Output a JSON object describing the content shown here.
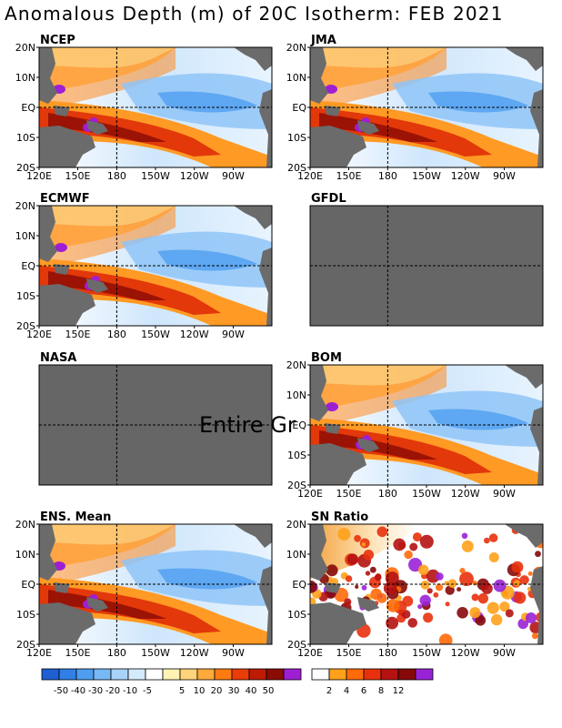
{
  "title": "Anomalous Depth (m) of 20C Isotherm: FEB 2021",
  "colors": {
    "land": "#6b6b6b",
    "missing": "#666666",
    "grid_line": "#000000",
    "anomaly_scale": [
      "#1e5fd4",
      "#2f7fe6",
      "#4f9df0",
      "#78b8f5",
      "#a9d2fa",
      "#d4ebfd",
      "#ffffff",
      "#fff2b3",
      "#ffd37a",
      "#ffaa3b",
      "#ff7b12",
      "#ea3c06",
      "#bd1b04",
      "#8a0c03",
      "#9e1fd3"
    ],
    "sn_scale": [
      "#ffffff",
      "#ffa11a",
      "#ff6a0a",
      "#e8310c",
      "#b51212",
      "#860909",
      "#9a22d6"
    ]
  },
  "chart_data": [
    {
      "type": "heatmap",
      "name": "NCEP",
      "status": "data",
      "xlim": [
        "120E",
        "70W"
      ],
      "ylim": [
        "20S",
        "20N"
      ],
      "grid_lines": [
        "180",
        "EQ"
      ]
    },
    {
      "type": "heatmap",
      "name": "JMA",
      "status": "data",
      "xlim": [
        "120E",
        "70W"
      ],
      "ylim": [
        "20S",
        "20N"
      ],
      "grid_lines": [
        "180",
        "EQ"
      ]
    },
    {
      "type": "heatmap",
      "name": "ECMWF",
      "status": "data",
      "xlim": [
        "120E",
        "70W"
      ],
      "ylim": [
        "20S",
        "20N"
      ],
      "grid_lines": [
        "180",
        "EQ"
      ]
    },
    {
      "type": "heatmap",
      "name": "GFDL",
      "status": "missing",
      "xlim": [
        "120E",
        "70W"
      ],
      "ylim": [
        "20S",
        "20N"
      ],
      "grid_lines": [
        "180",
        "EQ"
      ]
    },
    {
      "type": "heatmap",
      "name": "NASA",
      "status": "missing",
      "note": "Entire Gr",
      "xlim": [
        "120E",
        "70W"
      ],
      "ylim": [
        "20S",
        "20N"
      ],
      "grid_lines": [
        "180",
        "EQ"
      ]
    },
    {
      "type": "heatmap",
      "name": "BOM",
      "status": "data",
      "xlim": [
        "120E",
        "70W"
      ],
      "ylim": [
        "20S",
        "20N"
      ],
      "grid_lines": [
        "180",
        "EQ"
      ]
    },
    {
      "type": "heatmap",
      "name": "ENS. Mean",
      "status": "data",
      "xlim": [
        "120E",
        "70W"
      ],
      "ylim": [
        "20S",
        "20N"
      ],
      "grid_lines": [
        "180",
        "EQ"
      ]
    },
    {
      "type": "heatmap",
      "name": "SN Ratio",
      "status": "data",
      "xlim": [
        "120E",
        "70W"
      ],
      "ylim": [
        "20S",
        "20N"
      ],
      "grid_lines": [
        "180",
        "EQ"
      ]
    }
  ],
  "axes": {
    "x_ticks": [
      "120E",
      "150E",
      "180",
      "150W",
      "120W",
      "90W"
    ],
    "y_ticks": [
      "20N",
      "10N",
      "EQ",
      "10S",
      "20S"
    ]
  },
  "colorbars": {
    "anomaly": {
      "labels": [
        "-50",
        "-40",
        "-30",
        "-20",
        "-10",
        "-5",
        "5",
        "10",
        "20",
        "30",
        "40",
        "50"
      ]
    },
    "sn_ratio": {
      "labels": [
        "2",
        "4",
        "6",
        "8",
        "12"
      ]
    }
  }
}
